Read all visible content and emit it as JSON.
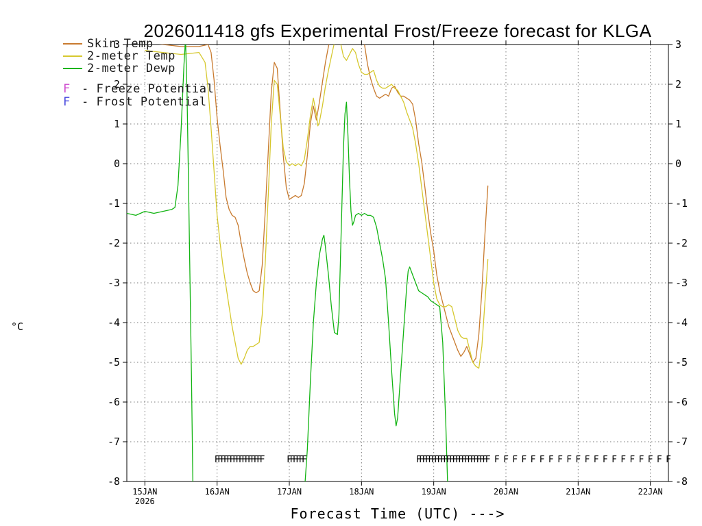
{
  "title": "2026011418 gfs Experimental Frost/Freeze forecast for KLGA",
  "axis": {
    "y_unit": "°C",
    "x_caption": "Forecast Time (UTC) --->"
  },
  "legend": {
    "items": [
      {
        "label": "Skin Temp",
        "color": "#c87a2e"
      },
      {
        "label": "2-meter Temp",
        "color": "#d6c82e"
      },
      {
        "label": "2-meter Dewp",
        "color": "#12b412"
      }
    ],
    "flags": [
      {
        "letter": "F",
        "label": "- Freeze Potential",
        "color": "#cc44cc"
      },
      {
        "letter": "F",
        "label": "- Frost Potential",
        "color": "#4444dd"
      }
    ]
  },
  "chart_data": {
    "type": "line",
    "title": "2026011418 gfs Experimental Frost/Freeze forecast for KLGA",
    "xlabel": "Forecast Time (UTC) --->",
    "ylabel": "°C",
    "ylim": [
      -8,
      3
    ],
    "xlim_hours": [
      0,
      180
    ],
    "grid": "dotted",
    "y_ticks": [
      3,
      2,
      1,
      0,
      -1,
      -2,
      -3,
      -4,
      -5,
      -6,
      -7,
      -8
    ],
    "x_ticks": [
      {
        "hour": 6,
        "label": "15JAN",
        "sublabel": "2026"
      },
      {
        "hour": 30,
        "label": "16JAN"
      },
      {
        "hour": 54,
        "label": "17JAN"
      },
      {
        "hour": 78,
        "label": "18JAN"
      },
      {
        "hour": 102,
        "label": "19JAN"
      },
      {
        "hour": 126,
        "label": "20JAN"
      },
      {
        "hour": 150,
        "label": "21JAN"
      },
      {
        "hour": 174,
        "label": "22JAN"
      }
    ],
    "series": [
      {
        "name": "Skin Temp",
        "color": "#c87a2e",
        "points": [
          [
            6,
            3.05
          ],
          [
            12,
            3.0
          ],
          [
            18,
            2.95
          ],
          [
            24,
            2.95
          ],
          [
            27,
            3.0
          ],
          [
            28,
            2.8
          ],
          [
            29,
            2.1
          ],
          [
            30,
            1.15
          ],
          [
            31,
            0.45
          ],
          [
            32,
            -0.15
          ],
          [
            33,
            -0.85
          ],
          [
            34,
            -1.15
          ],
          [
            35,
            -1.3
          ],
          [
            36,
            -1.35
          ],
          [
            37,
            -1.55
          ],
          [
            38,
            -2.0
          ],
          [
            39,
            -2.4
          ],
          [
            40,
            -2.75
          ],
          [
            41,
            -3.0
          ],
          [
            42,
            -3.2
          ],
          [
            43,
            -3.25
          ],
          [
            44,
            -3.2
          ],
          [
            45,
            -2.55
          ],
          [
            46,
            -1.2
          ],
          [
            47,
            0.3
          ],
          [
            48,
            1.8
          ],
          [
            49,
            2.55
          ],
          [
            50,
            2.4
          ],
          [
            51,
            1.3
          ],
          [
            52,
            0.2
          ],
          [
            53,
            -0.6
          ],
          [
            54,
            -0.9
          ],
          [
            55,
            -0.85
          ],
          [
            56,
            -0.8
          ],
          [
            57,
            -0.85
          ],
          [
            58,
            -0.8
          ],
          [
            59,
            -0.5
          ],
          [
            60,
            0.2
          ],
          [
            61,
            1.0
          ],
          [
            62,
            1.45
          ],
          [
            63,
            1.1
          ],
          [
            64,
            1.55
          ],
          [
            65,
            2.05
          ],
          [
            66,
            2.55
          ],
          [
            67,
            2.95
          ],
          [
            68,
            3.25
          ],
          [
            70,
            3.6
          ],
          [
            74,
            3.8
          ],
          [
            78,
            3.4
          ],
          [
            79,
            3.0
          ],
          [
            80,
            2.5
          ],
          [
            81,
            2.15
          ],
          [
            82,
            1.9
          ],
          [
            83,
            1.7
          ],
          [
            84,
            1.65
          ],
          [
            85,
            1.7
          ],
          [
            86,
            1.75
          ],
          [
            87,
            1.7
          ],
          [
            88,
            1.9
          ],
          [
            89,
            1.95
          ],
          [
            90,
            1.8
          ],
          [
            91,
            1.7
          ],
          [
            92,
            1.7
          ],
          [
            93,
            1.65
          ],
          [
            94,
            1.6
          ],
          [
            95,
            1.5
          ],
          [
            96,
            1.1
          ],
          [
            97,
            0.5
          ],
          [
            98,
            0.05
          ],
          [
            99,
            -0.55
          ],
          [
            100,
            -1.2
          ],
          [
            101,
            -1.75
          ],
          [
            102,
            -2.2
          ],
          [
            103,
            -2.8
          ],
          [
            104,
            -3.2
          ],
          [
            105,
            -3.5
          ],
          [
            106,
            -3.8
          ],
          [
            107,
            -4.1
          ],
          [
            108,
            -4.3
          ],
          [
            109,
            -4.5
          ],
          [
            110,
            -4.7
          ],
          [
            111,
            -4.85
          ],
          [
            112,
            -4.75
          ],
          [
            113,
            -4.6
          ],
          [
            114,
            -4.8
          ],
          [
            115,
            -5.0
          ],
          [
            116,
            -4.9
          ],
          [
            117,
            -4.3
          ],
          [
            118,
            -3.2
          ],
          [
            119,
            -1.8
          ],
          [
            120,
            -0.55
          ]
        ]
      },
      {
        "name": "2-meter Temp",
        "color": "#d6c82e",
        "points": [
          [
            6,
            2.85
          ],
          [
            12,
            2.8
          ],
          [
            18,
            2.75
          ],
          [
            24,
            2.8
          ],
          [
            26,
            2.55
          ],
          [
            27,
            1.9
          ],
          [
            28,
            0.9
          ],
          [
            29,
            -0.2
          ],
          [
            30,
            -1.3
          ],
          [
            31,
            -2.0
          ],
          [
            32,
            -2.6
          ],
          [
            33,
            -3.1
          ],
          [
            34,
            -3.6
          ],
          [
            35,
            -4.1
          ],
          [
            36,
            -4.5
          ],
          [
            37,
            -4.9
          ],
          [
            38,
            -5.05
          ],
          [
            39,
            -4.9
          ],
          [
            40,
            -4.7
          ],
          [
            41,
            -4.6
          ],
          [
            42,
            -4.6
          ],
          [
            43,
            -4.55
          ],
          [
            44,
            -4.5
          ],
          [
            45,
            -3.8
          ],
          [
            46,
            -2.5
          ],
          [
            47,
            -0.8
          ],
          [
            48,
            1.0
          ],
          [
            49,
            2.1
          ],
          [
            50,
            2.0
          ],
          [
            51,
            1.2
          ],
          [
            52,
            0.4
          ],
          [
            53,
            0.05
          ],
          [
            54,
            -0.05
          ],
          [
            55,
            0.0
          ],
          [
            56,
            -0.05
          ],
          [
            57,
            0.0
          ],
          [
            58,
            -0.05
          ],
          [
            59,
            0.1
          ],
          [
            60,
            0.6
          ],
          [
            61,
            1.2
          ],
          [
            62,
            1.65
          ],
          [
            63,
            1.25
          ],
          [
            63.5,
            0.95
          ],
          [
            64,
            1.05
          ],
          [
            65,
            1.45
          ],
          [
            66,
            1.95
          ],
          [
            67,
            2.35
          ],
          [
            68,
            2.7
          ],
          [
            69,
            3.05
          ],
          [
            70,
            3.3
          ],
          [
            71,
            3.05
          ],
          [
            72,
            2.7
          ],
          [
            73,
            2.6
          ],
          [
            74,
            2.75
          ],
          [
            75,
            2.9
          ],
          [
            76,
            2.8
          ],
          [
            77,
            2.5
          ],
          [
            78,
            2.3
          ],
          [
            79,
            2.25
          ],
          [
            80,
            2.25
          ],
          [
            81,
            2.3
          ],
          [
            82,
            2.35
          ],
          [
            83,
            2.1
          ],
          [
            84,
            1.95
          ],
          [
            85,
            1.9
          ],
          [
            86,
            1.9
          ],
          [
            87,
            1.95
          ],
          [
            88,
            2.0
          ],
          [
            89,
            1.9
          ],
          [
            90,
            1.85
          ],
          [
            91,
            1.7
          ],
          [
            92,
            1.55
          ],
          [
            93,
            1.3
          ],
          [
            94,
            1.1
          ],
          [
            95,
            0.9
          ],
          [
            96,
            0.5
          ],
          [
            97,
            0.0
          ],
          [
            98,
            -0.6
          ],
          [
            99,
            -1.2
          ],
          [
            100,
            -1.8
          ],
          [
            101,
            -2.4
          ],
          [
            102,
            -3.0
          ],
          [
            103,
            -3.4
          ],
          [
            104,
            -3.55
          ],
          [
            105,
            -3.6
          ],
          [
            106,
            -3.6
          ],
          [
            107,
            -3.55
          ],
          [
            108,
            -3.6
          ],
          [
            109,
            -3.9
          ],
          [
            110,
            -4.2
          ],
          [
            111,
            -4.35
          ],
          [
            112,
            -4.4
          ],
          [
            113,
            -4.4
          ],
          [
            114,
            -4.7
          ],
          [
            115,
            -5.0
          ],
          [
            116,
            -5.1
          ],
          [
            117,
            -5.15
          ],
          [
            118,
            -4.6
          ],
          [
            119,
            -3.5
          ],
          [
            120,
            -2.4
          ]
        ]
      },
      {
        "name": "2-meter Dewp",
        "color": "#12b412",
        "points": [
          [
            0,
            -1.25
          ],
          [
            3,
            -1.3
          ],
          [
            6,
            -1.2
          ],
          [
            9,
            -1.25
          ],
          [
            12,
            -1.2
          ],
          [
            15,
            -1.15
          ],
          [
            16,
            -1.1
          ],
          [
            17,
            -0.55
          ],
          [
            18,
            0.8
          ],
          [
            19,
            2.5
          ],
          [
            19.5,
            3.15
          ],
          [
            20,
            1.8
          ],
          [
            20.5,
            -0.5
          ],
          [
            21,
            -3.0
          ],
          [
            21.5,
            -5.5
          ],
          [
            22,
            -8.4
          ],
          [
            23,
            -9.5
          ],
          [
            56,
            -9.5
          ],
          [
            58,
            -8.6
          ],
          [
            59,
            -8.3
          ],
          [
            60,
            -7.2
          ],
          [
            61,
            -5.5
          ],
          [
            62,
            -4.0
          ],
          [
            63,
            -3.0
          ],
          [
            64,
            -2.3
          ],
          [
            65,
            -1.9
          ],
          [
            65.5,
            -1.8
          ],
          [
            66,
            -2.1
          ],
          [
            67,
            -2.8
          ],
          [
            68,
            -3.6
          ],
          [
            69,
            -4.25
          ],
          [
            70,
            -4.3
          ],
          [
            70.5,
            -3.8
          ],
          [
            71,
            -2.4
          ],
          [
            71.5,
            -1.0
          ],
          [
            72,
            0.4
          ],
          [
            72.5,
            1.25
          ],
          [
            73,
            1.55
          ],
          [
            73.5,
            0.7
          ],
          [
            74,
            -0.4
          ],
          [
            74.5,
            -1.2
          ],
          [
            75,
            -1.55
          ],
          [
            75.5,
            -1.45
          ],
          [
            76,
            -1.3
          ],
          [
            77,
            -1.25
          ],
          [
            78,
            -1.3
          ],
          [
            79,
            -1.25
          ],
          [
            80,
            -1.3
          ],
          [
            81,
            -1.3
          ],
          [
            82,
            -1.35
          ],
          [
            83,
            -1.6
          ],
          [
            84,
            -2.0
          ],
          [
            85,
            -2.4
          ],
          [
            86,
            -2.9
          ],
          [
            87,
            -4.0
          ],
          [
            88,
            -5.2
          ],
          [
            89,
            -6.3
          ],
          [
            89.5,
            -6.6
          ],
          [
            90,
            -6.4
          ],
          [
            91,
            -5.3
          ],
          [
            92,
            -4.2
          ],
          [
            93,
            -3.1
          ],
          [
            93.5,
            -2.7
          ],
          [
            94,
            -2.6
          ],
          [
            95,
            -2.8
          ],
          [
            96,
            -3.0
          ],
          [
            97,
            -3.2
          ],
          [
            98,
            -3.25
          ],
          [
            99,
            -3.3
          ],
          [
            100,
            -3.35
          ],
          [
            101,
            -3.45
          ],
          [
            102,
            -3.5
          ],
          [
            103,
            -3.55
          ],
          [
            104,
            -3.6
          ],
          [
            105,
            -4.5
          ],
          [
            106,
            -6.5
          ],
          [
            106.8,
            -8.5
          ]
        ]
      }
    ],
    "freeze_marks": {
      "name": "freeze-potential-marks",
      "letter": "F",
      "color": "#cc44cc",
      "y": -7.45,
      "hours": [
        30,
        31,
        32,
        33,
        34,
        35,
        36,
        37,
        38,
        39,
        40,
        41,
        42,
        43,
        44,
        45,
        54,
        55,
        56,
        57,
        58,
        59,
        97,
        98,
        99,
        100,
        101,
        102,
        103,
        104,
        105,
        106,
        107,
        108,
        109,
        110,
        111,
        112,
        113,
        114,
        115,
        116,
        117,
        118,
        119,
        120,
        123,
        126,
        129,
        132,
        135,
        138,
        141,
        144,
        147,
        150,
        153,
        156,
        159,
        162,
        165,
        168,
        171,
        174,
        177,
        180
      ]
    },
    "frost_marks": {
      "name": "frost-potential-marks",
      "letter": "F",
      "color": "#4444dd",
      "y": -7.45,
      "hours": []
    }
  }
}
